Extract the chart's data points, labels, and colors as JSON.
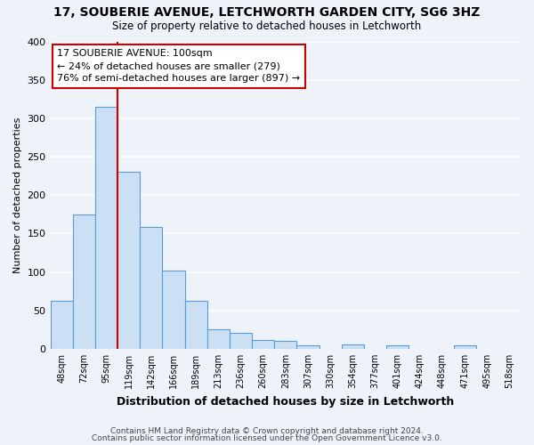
{
  "title": "17, SOUBERIE AVENUE, LETCHWORTH GARDEN CITY, SG6 3HZ",
  "subtitle": "Size of property relative to detached houses in Letchworth",
  "xlabel": "Distribution of detached houses by size in Letchworth",
  "ylabel": "Number of detached properties",
  "bin_labels": [
    "48sqm",
    "72sqm",
    "95sqm",
    "119sqm",
    "142sqm",
    "166sqm",
    "189sqm",
    "213sqm",
    "236sqm",
    "260sqm",
    "283sqm",
    "307sqm",
    "330sqm",
    "354sqm",
    "377sqm",
    "401sqm",
    "424sqm",
    "448sqm",
    "471sqm",
    "495sqm",
    "518sqm"
  ],
  "bar_values": [
    63,
    175,
    315,
    230,
    158,
    102,
    62,
    25,
    21,
    11,
    10,
    5,
    0,
    6,
    0,
    5,
    0,
    0,
    5,
    0,
    0
  ],
  "bar_color": "#cce0f5",
  "bar_edge_color": "#5b9bd5",
  "background_color": "#eef2f9",
  "grid_color": "#ffffff",
  "property_line_color": "#cc0000",
  "annotation_title": "17 SOUBERIE AVENUE: 100sqm",
  "annotation_line1": "← 24% of detached houses are smaller (279)",
  "annotation_line2": "76% of semi-detached houses are larger (897) →",
  "annotation_box_color": "#cc0000",
  "ylim": [
    0,
    400
  ],
  "yticks": [
    0,
    50,
    100,
    150,
    200,
    250,
    300,
    350,
    400
  ],
  "footer1": "Contains HM Land Registry data © Crown copyright and database right 2024.",
  "footer2": "Contains public sector information licensed under the Open Government Licence v3.0."
}
